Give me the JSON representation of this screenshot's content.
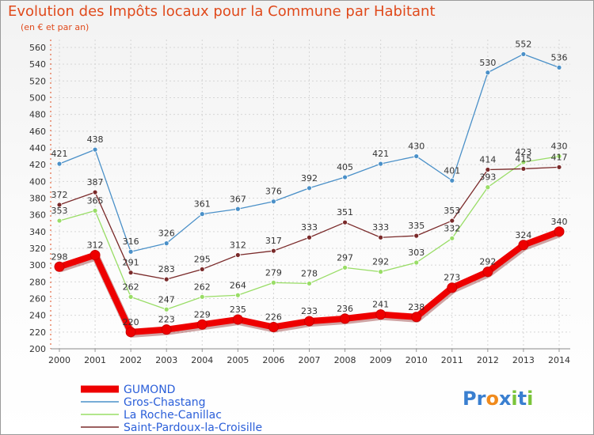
{
  "chart_data": {
    "type": "line",
    "title": "Evolution des Impôts locaux pour la Commune par Habitant",
    "subtitle": "(en € et par an)",
    "xlabel": "",
    "ylabel": "",
    "x": [
      "2000",
      "2001",
      "2002",
      "2003",
      "2004",
      "2005",
      "2006",
      "2007",
      "2008",
      "2009",
      "2010",
      "2011",
      "2012",
      "2013",
      "2014"
    ],
    "ylim": [
      200,
      560
    ],
    "yticks": [
      200,
      220,
      240,
      260,
      280,
      300,
      320,
      340,
      360,
      380,
      400,
      420,
      440,
      460,
      480,
      500,
      520,
      540,
      560
    ],
    "grid": true,
    "legend_position": "bottom-left",
    "series": [
      {
        "name": "GUMOND",
        "color": "#ee0000",
        "values": [
          298,
          312,
          220,
          223,
          229,
          235,
          226,
          233,
          236,
          241,
          238,
          273,
          292,
          324,
          340
        ]
      },
      {
        "name": "Gros-Chastang",
        "color": "#4a90c8",
        "values": [
          421,
          438,
          316,
          326,
          361,
          367,
          376,
          392,
          405,
          421,
          430,
          401,
          530,
          552,
          536
        ]
      },
      {
        "name": "La Roche-Canillac",
        "color": "#99dd66",
        "values": [
          353,
          365,
          262,
          247,
          262,
          264,
          279,
          278,
          297,
          292,
          303,
          332,
          393,
          423,
          430
        ]
      },
      {
        "name": "Saint-Pardoux-la-Croisille",
        "color": "#7a2a2a",
        "values": [
          372,
          387,
          291,
          283,
          295,
          312,
          317,
          333,
          351,
          333,
          335,
          353,
          414,
          415,
          417
        ]
      }
    ]
  },
  "logo": {
    "text": "Proxiti",
    "letters": [
      "P",
      "r",
      "o",
      "x",
      "i",
      "t",
      "i"
    ],
    "colors": [
      "#3a7fd0",
      "#3a7fd0",
      "#f08a1c",
      "#3a7fd0",
      "#7ac43a",
      "#3a7fd0",
      "#7ac43a"
    ]
  }
}
